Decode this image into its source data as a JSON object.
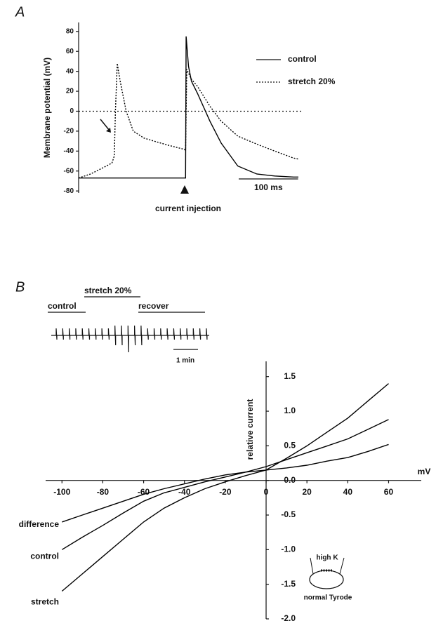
{
  "chart_data": [
    {
      "type": "line",
      "panel": "A",
      "ylabel": "Membrane potential (mV)",
      "xlim": [
        0,
        370
      ],
      "ylim": [
        -82,
        89
      ],
      "yticks": [
        -80,
        -60,
        -40,
        -20,
        0,
        20,
        40,
        60,
        80
      ],
      "reference_line": 0,
      "annotation": "current injection",
      "event_x": 180,
      "scale_bar": {
        "value": 100,
        "label": "100 ms"
      },
      "series": [
        {
          "name": "control",
          "color": "#000000",
          "dash": false,
          "x": [
            0,
            180,
            181,
            185,
            190,
            200,
            221,
            240,
            268,
            300,
            330,
            362,
            370
          ],
          "values": [
            -67,
            -67,
            75,
            45,
            30,
            18,
            -10,
            -32,
            -55,
            -63,
            -65,
            -66,
            -66
          ]
        },
        {
          "name": "stretch 20%",
          "color": "#000000",
          "dash": true,
          "x": [
            0,
            20,
            40,
            56,
            60,
            62,
            65,
            70,
            80,
            92,
            110,
            127,
            150,
            176,
            180,
            182,
            190,
            200,
            221,
            240,
            268,
            300,
            330,
            362,
            370
          ],
          "values": [
            -67,
            -63,
            -57,
            -52,
            -45,
            0,
            48,
            30,
            0,
            -20,
            -27,
            -30,
            -34,
            -38,
            -39,
            42,
            32,
            25,
            5,
            -10,
            -25,
            -33,
            -40,
            -47,
            -48
          ]
        }
      ]
    },
    {
      "type": "line",
      "panel": "B",
      "xlabel": "mV",
      "ylabel": "relative current",
      "xlim": [
        -108,
        76
      ],
      "ylim": [
        -2.0,
        1.72
      ],
      "xticks": [
        -100,
        -80,
        -60,
        -40,
        -20,
        0,
        20,
        40,
        60
      ],
      "yticks": [
        {
          "value": -2.0,
          "label": "-2.0"
        },
        -1.5,
        {
          "value": -1.0,
          "label": "-1.0"
        },
        -0.5,
        {
          "value": 0.0,
          "label": "0.0"
        },
        0.5,
        {
          "value": 1.0,
          "label": "1.0"
        },
        1.5
      ],
      "trace_labels": [
        "control",
        "stretch 20%",
        "recover"
      ],
      "time_bar": "1 min",
      "diagram_labels": [
        "high K",
        "normal Tyrode"
      ],
      "series": [
        {
          "name": "difference",
          "color": "#000000",
          "x": [
            -100,
            -90,
            -80,
            -70,
            -60,
            -50,
            -40,
            -30,
            -20,
            -10,
            0,
            10,
            20,
            30,
            40,
            50,
            60
          ],
          "values": [
            -0.6,
            -0.5,
            -0.4,
            -0.3,
            -0.2,
            -0.12,
            -0.05,
            0.02,
            0.08,
            0.12,
            0.15,
            0.18,
            0.22,
            0.28,
            0.33,
            0.42,
            0.52
          ]
        },
        {
          "name": "control",
          "color": "#000000",
          "x": [
            -100,
            -90,
            -80,
            -70,
            -60,
            -50,
            -40,
            -30,
            -20,
            -10,
            0,
            10,
            20,
            30,
            40,
            50,
            60
          ],
          "values": [
            -1.0,
            -0.82,
            -0.65,
            -0.47,
            -0.3,
            -0.18,
            -0.1,
            -0.02,
            0.05,
            0.12,
            0.2,
            0.3,
            0.4,
            0.5,
            0.6,
            0.74,
            0.88
          ]
        },
        {
          "name": "stretch",
          "color": "#000000",
          "x": [
            -100,
            -90,
            -80,
            -70,
            -60,
            -50,
            -40,
            -30,
            -20,
            -10,
            0,
            10,
            20,
            30,
            40,
            50,
            60
          ],
          "values": [
            -1.6,
            -1.35,
            -1.1,
            -0.85,
            -0.6,
            -0.4,
            -0.25,
            -0.12,
            -0.02,
            0.07,
            0.15,
            0.32,
            0.5,
            0.7,
            0.9,
            1.15,
            1.4
          ]
        }
      ]
    }
  ]
}
